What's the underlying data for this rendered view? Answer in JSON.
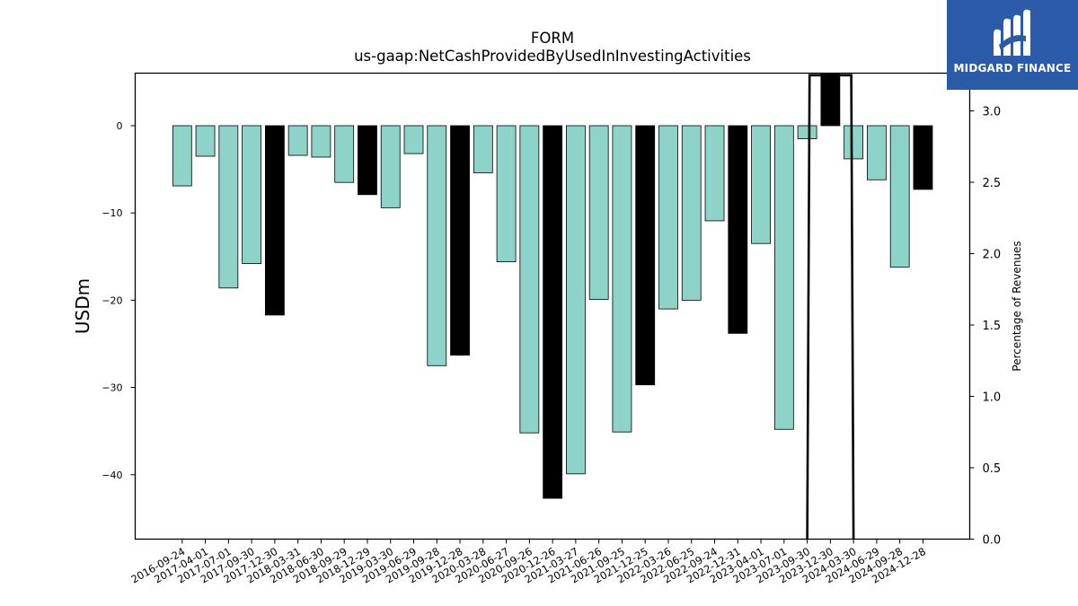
{
  "chart_data": {
    "type": "bar",
    "title": "FORM",
    "subtitle": "us-gaap:NetCashProvidedByUsedInInvestingActivities",
    "ylabel": "USDm",
    "y2label": "Percentage of Revenues",
    "ylim": [
      -47.5,
      6
    ],
    "y2lim": [
      0.0,
      3.25
    ],
    "yticks": [
      0,
      -10,
      -20,
      -30,
      -40
    ],
    "ytick_labels": [
      "0",
      "−10",
      "−20",
      "−30",
      "−40"
    ],
    "y2ticks": [
      0.0,
      0.5,
      1.0,
      1.5,
      2.0,
      2.5,
      3.0
    ],
    "y2tick_labels": [
      "0.0",
      "0.5",
      "1.0",
      "1.5",
      "2.0",
      "2.5",
      "3.0"
    ],
    "grid": false,
    "colors": {
      "quarter": "#8dd3c7",
      "year_end": "#000000",
      "edge": "#000000",
      "line": "#000000"
    },
    "categories": [
      "2016-09-24",
      "2017-04-01",
      "2017-07-01",
      "2017-09-30",
      "2017-12-30",
      "2018-03-31",
      "2018-06-30",
      "2018-09-29",
      "2018-12-29",
      "2019-03-30",
      "2019-06-29",
      "2019-09-28",
      "2019-12-28",
      "2020-03-28",
      "2020-06-27",
      "2020-09-26",
      "2020-12-26",
      "2021-03-27",
      "2021-06-26",
      "2021-09-25",
      "2021-12-25",
      "2022-03-26",
      "2022-06-25",
      "2022-09-24",
      "2022-12-31",
      "2023-04-01",
      "2023-07-01",
      "2023-09-30",
      "2023-12-30",
      "2024-03-30",
      "2024-06-29",
      "2024-09-28",
      "2024-12-28"
    ],
    "values": [
      -6.9,
      -3.5,
      -18.6,
      -15.8,
      -21.7,
      -3.4,
      -3.6,
      -6.5,
      -7.9,
      -9.4,
      -3.2,
      -27.5,
      -26.3,
      -5.4,
      -15.6,
      -35.2,
      -42.7,
      -39.9,
      -19.9,
      -35.1,
      -29.7,
      -21.0,
      -20.0,
      -10.9,
      -23.8,
      -13.5,
      -34.8,
      -1.5,
      6.0,
      -3.8,
      -6.2,
      -16.2,
      -7.3
    ],
    "bar_types": [
      "quarter",
      "quarter",
      "quarter",
      "quarter",
      "year_end",
      "quarter",
      "quarter",
      "quarter",
      "year_end",
      "quarter",
      "quarter",
      "quarter",
      "year_end",
      "quarter",
      "quarter",
      "quarter",
      "year_end",
      "quarter",
      "quarter",
      "quarter",
      "year_end",
      "quarter",
      "quarter",
      "quarter",
      "year_end",
      "quarter",
      "quarter",
      "quarter",
      "year_end",
      "quarter",
      "quarter",
      "quarter",
      "year_end"
    ],
    "percentage_series": [
      {
        "x_index": 27.0,
        "y": 0.0
      },
      {
        "x_index": 27.1,
        "y": 3.25
      },
      {
        "x_index": 28.9,
        "y": 3.25
      },
      {
        "x_index": 29.0,
        "y": 0.0
      }
    ]
  },
  "logo": {
    "text": "MIDGARD FINANCE"
  }
}
